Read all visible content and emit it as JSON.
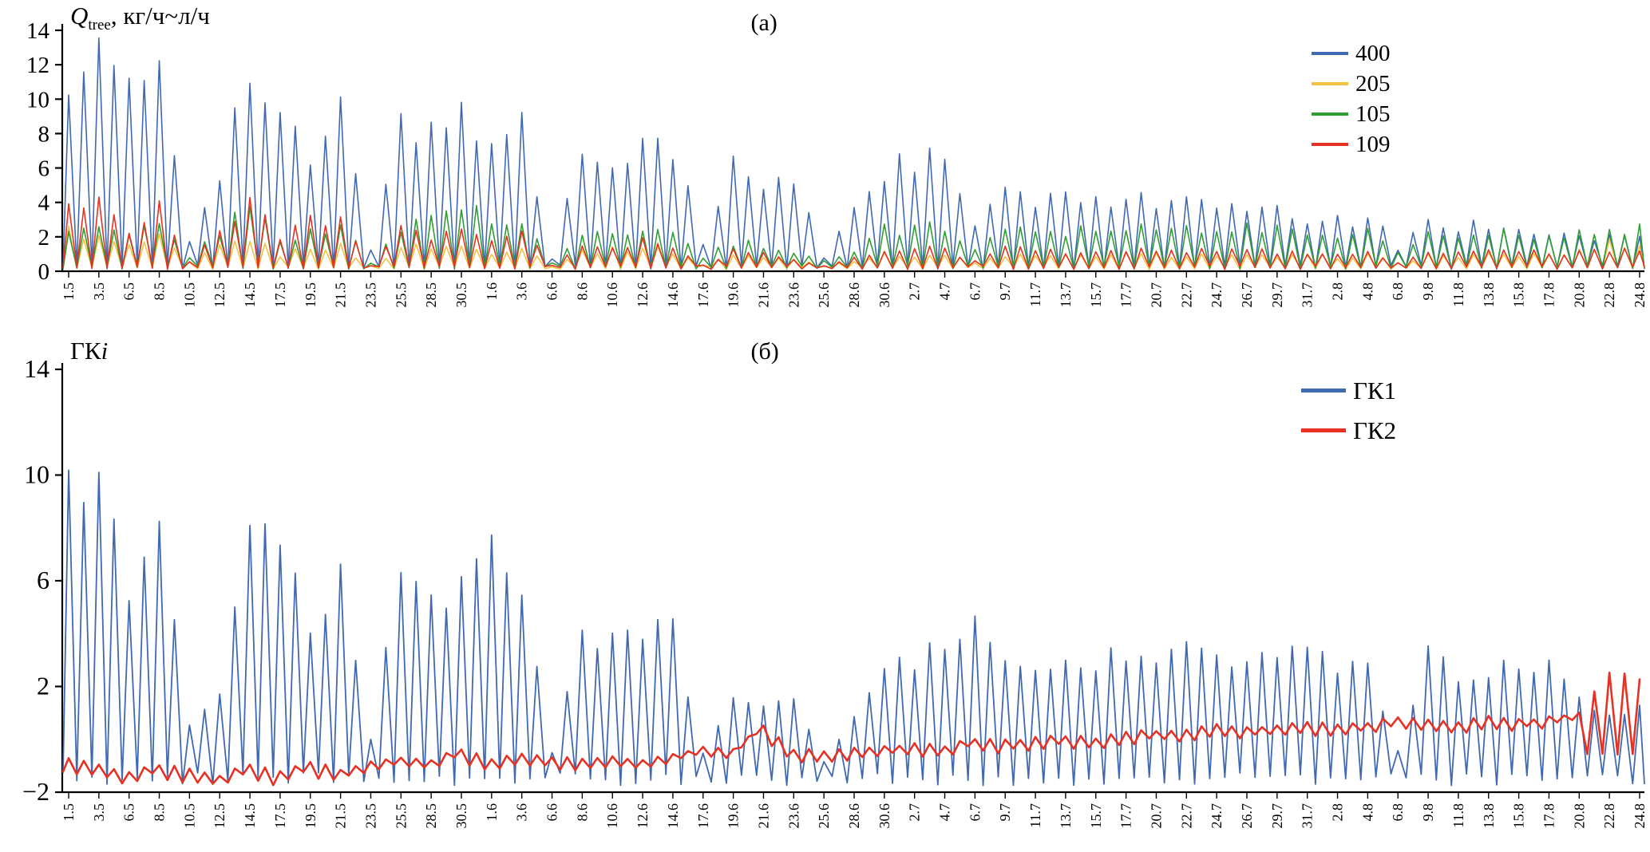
{
  "chart_data": [
    {
      "id": "a",
      "type": "line",
      "panel_label": "(а)",
      "title": "Q_tree, кг/ч~л/ч",
      "title_parts": {
        "symbol": "Q",
        "subscript": "tree",
        "units": ", кг/ч~л/ч"
      },
      "ylim": [
        0,
        14
      ],
      "yticks": [
        0,
        2,
        4,
        6,
        8,
        10,
        12,
        14
      ],
      "grid": false,
      "legend_position": "top-right",
      "note": "values are estimated daily peak envelopes read at the labeled dates (day.month)",
      "categories": [
        "1.5",
        "3.5",
        "6.5",
        "8.5",
        "10.5",
        "12.5",
        "14.5",
        "17.5",
        "19.5",
        "21.5",
        "23.5",
        "25.5",
        "28.5",
        "30.5",
        "1.6",
        "3.6",
        "6.6",
        "8.6",
        "10.6",
        "12.6",
        "14.6",
        "17.6",
        "19.6",
        "21.6",
        "23.6",
        "25.6",
        "28.6",
        "30.6",
        "2.7",
        "4.7",
        "6.7",
        "9.7",
        "11.7",
        "13.7",
        "15.7",
        "17.7",
        "20.7",
        "22.7",
        "24.7",
        "26.7",
        "29.7",
        "31.7",
        "2.8",
        "4.8",
        "6.8",
        "9.8",
        "11.8",
        "13.8",
        "15.8",
        "17.8",
        "20.8",
        "22.8",
        "24.8"
      ],
      "series": [
        {
          "name": "400",
          "color": "#4169b1",
          "values": [
            12.8,
            13.0,
            10.5,
            12.7,
            2.0,
            6.5,
            12.1,
            9.0,
            6.6,
            9.9,
            1.2,
            10.2,
            8.0,
            10.0,
            8.0,
            8.9,
            0.8,
            7.5,
            7.5,
            7.7,
            8.0,
            1.5,
            6.6,
            5.0,
            5.6,
            0.9,
            4.0,
            6.3,
            6.5,
            6.9,
            2.5,
            5.0,
            4.3,
            4.2,
            4.5,
            4.7,
            4.4,
            4.1,
            4.0,
            3.6,
            3.5,
            3.2,
            3.0,
            3.4,
            1.4,
            3.2,
            2.6,
            3.0,
            2.7,
            2.4,
            2.0,
            2.2,
            2.0
          ]
        },
        {
          "name": "205",
          "color": "#f3c242",
          "values": [
            2.5,
            2.0,
            1.5,
            2.0,
            0.5,
            1.5,
            2.0,
            1.0,
            1.5,
            1.5,
            0.3,
            1.5,
            1.5,
            1.5,
            1.2,
            1.5,
            0.3,
            1.2,
            1.3,
            1.5,
            1.2,
            0.4,
            1.0,
            0.8,
            0.8,
            0.3,
            0.7,
            1.0,
            1.0,
            1.0,
            0.5,
            1.0,
            0.9,
            0.9,
            1.0,
            1.0,
            1.0,
            1.0,
            1.0,
            0.9,
            0.9,
            0.9,
            0.9,
            1.0,
            0.5,
            1.0,
            0.9,
            1.0,
            1.0,
            1.0,
            1.2,
            1.8,
            1.5
          ]
        },
        {
          "name": "105",
          "color": "#2f9e33",
          "values": [
            2.8,
            2.5,
            2.2,
            2.8,
            0.8,
            2.5,
            4.0,
            2.0,
            2.5,
            2.8,
            0.5,
            2.5,
            3.5,
            4.3,
            3.0,
            3.0,
            0.5,
            2.2,
            2.5,
            2.6,
            2.5,
            0.8,
            1.8,
            1.5,
            1.3,
            0.6,
            1.3,
            2.5,
            2.7,
            2.8,
            1.2,
            2.8,
            2.5,
            2.5,
            2.6,
            2.8,
            2.7,
            2.6,
            2.8,
            2.6,
            2.5,
            2.4,
            2.3,
            2.5,
            1.0,
            2.4,
            2.2,
            2.5,
            2.4,
            2.2,
            2.2,
            2.8,
            2.5
          ]
        },
        {
          "name": "109",
          "color": "#e63123",
          "values": [
            4.0,
            4.2,
            2.7,
            4.1,
            0.6,
            2.5,
            3.9,
            2.3,
            3.2,
            3.2,
            0.3,
            2.5,
            2.0,
            2.3,
            2.0,
            2.5,
            0.3,
            1.5,
            1.6,
            1.8,
            1.5,
            0.4,
            1.2,
            1.0,
            0.8,
            0.3,
            0.8,
            1.2,
            1.3,
            1.4,
            0.6,
            1.4,
            1.3,
            1.2,
            1.3,
            1.4,
            1.3,
            1.3,
            1.3,
            1.2,
            1.2,
            1.1,
            1.1,
            1.2,
            0.5,
            1.2,
            1.1,
            1.2,
            1.2,
            1.1,
            1.1,
            1.3,
            1.2
          ]
        }
      ]
    },
    {
      "id": "b",
      "type": "line",
      "panel_label": "(б)",
      "title": "ГКi",
      "title_parts": {
        "text": "ГК",
        "italic": "i"
      },
      "ylim": [
        -2,
        14
      ],
      "yticks": [
        -2,
        2,
        6,
        10,
        14
      ],
      "grid": false,
      "legend_position": "top-right",
      "note": "ГК1 values are daily peak envelopes, ГК2 values are the smoothed level at the labeled dates (day.month)",
      "categories": [
        "1.5",
        "3.5",
        "6.5",
        "8.5",
        "10.5",
        "12.5",
        "14.5",
        "17.5",
        "19.5",
        "21.5",
        "23.5",
        "25.5",
        "28.5",
        "30.5",
        "1.6",
        "3.6",
        "6.6",
        "8.6",
        "10.6",
        "12.6",
        "14.6",
        "17.6",
        "19.6",
        "21.6",
        "23.6",
        "25.6",
        "28.6",
        "30.6",
        "2.7",
        "4.7",
        "6.7",
        "9.7",
        "11.7",
        "13.7",
        "15.7",
        "17.7",
        "20.7",
        "22.7",
        "24.7",
        "26.7",
        "29.7",
        "31.7",
        "2.8",
        "4.8",
        "6.8",
        "9.8",
        "11.8",
        "13.8",
        "15.8",
        "17.8",
        "20.8",
        "22.8",
        "24.8"
      ],
      "series": [
        {
          "name": "ГК1",
          "color": "#4169b1",
          "values": [
            10.3,
            10.5,
            6.5,
            10.1,
            0.5,
            2.0,
            9.5,
            7.5,
            4.5,
            7.0,
            0.0,
            7.5,
            5.0,
            6.8,
            7.5,
            5.8,
            -0.5,
            4.0,
            4.5,
            4.5,
            4.2,
            -0.5,
            1.5,
            1.2,
            1.5,
            -0.8,
            0.8,
            3.2,
            3.0,
            3.8,
            4.3,
            2.8,
            3.0,
            2.8,
            3.0,
            3.5,
            3.3,
            3.5,
            3.0,
            3.2,
            3.3,
            3.5,
            2.8,
            3.0,
            -0.5,
            3.3,
            2.5,
            2.8,
            3.0,
            2.8,
            1.5,
            1.0,
            1.2
          ]
        },
        {
          "name": "ГК2",
          "color": "#e63123",
          "values": [
            -0.8,
            -1.0,
            -1.3,
            -1.0,
            -1.2,
            -1.4,
            -1.0,
            -1.3,
            -0.9,
            -1.2,
            -0.9,
            -0.7,
            -0.8,
            -0.4,
            -0.8,
            -0.6,
            -0.7,
            -0.8,
            -0.7,
            -0.8,
            -0.6,
            -0.3,
            -0.4,
            0.5,
            -0.4,
            -0.5,
            -0.4,
            -0.3,
            -0.2,
            -0.3,
            0.0,
            -0.1,
            0.0,
            0.1,
            0.0,
            0.2,
            0.3,
            0.3,
            0.5,
            0.4,
            0.5,
            0.6,
            0.5,
            0.6,
            0.8,
            0.7,
            0.6,
            0.8,
            0.7,
            0.8,
            1.0,
            2.5,
            2.2
          ]
        }
      ]
    }
  ]
}
